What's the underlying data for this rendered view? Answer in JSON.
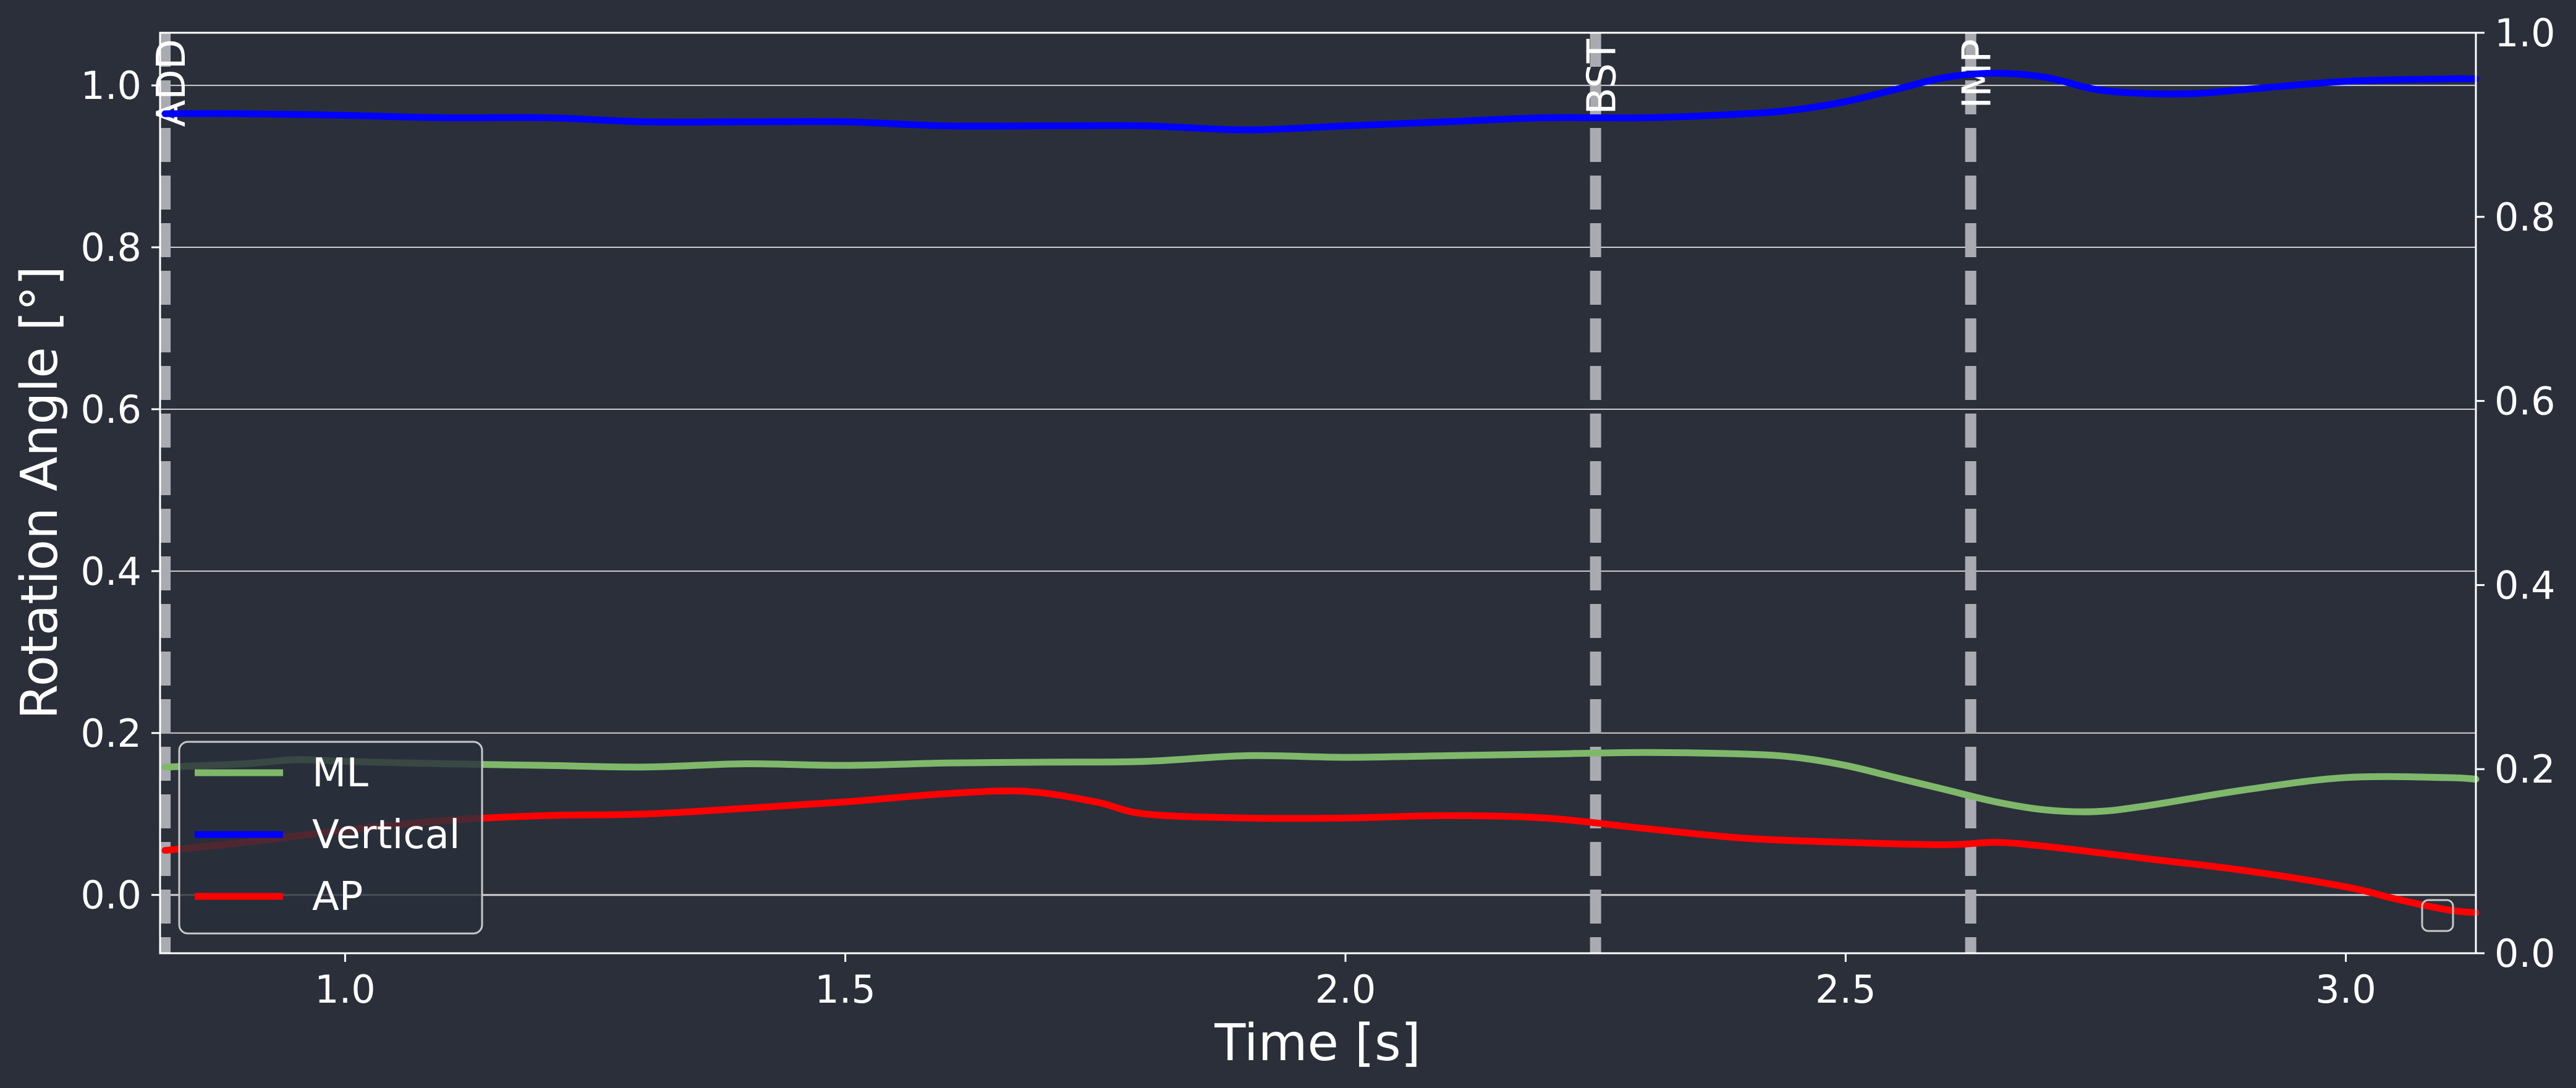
{
  "chart_data": {
    "type": "line",
    "xlabel": "Time [s]",
    "ylabel": "Rotation Angle [°]",
    "xlim": [
      0.815,
      3.13
    ],
    "ylim": [
      -0.072,
      1.065
    ],
    "x_ticks": [
      1.0,
      1.5,
      2.0,
      2.5,
      3.0
    ],
    "x_tick_labels": [
      "1.0",
      "1.5",
      "2.0",
      "2.5",
      "3.0"
    ],
    "y_ticks": [
      0.0,
      0.2,
      0.4,
      0.6,
      0.8,
      1.0
    ],
    "y_tick_labels": [
      "0.0",
      "0.2",
      "0.4",
      "0.6",
      "0.8",
      "1.0"
    ],
    "y2_lim": [
      0.0,
      1.0
    ],
    "y2_ticks": [
      0.0,
      0.2,
      0.4,
      0.6,
      0.8,
      1.0
    ],
    "y2_tick_labels": [
      "0.0",
      "0.2",
      "0.4",
      "0.6",
      "0.8",
      "1.0"
    ],
    "grid": "horizontal",
    "legend_position": "lower-left",
    "series": [
      {
        "name": "ML",
        "color": "#7fb86a",
        "x": [
          0.82,
          0.9,
          0.95,
          1.0,
          1.1,
          1.2,
          1.3,
          1.4,
          1.5,
          1.6,
          1.7,
          1.8,
          1.9,
          2.0,
          2.1,
          2.2,
          2.3,
          2.4,
          2.45,
          2.5,
          2.55,
          2.6,
          2.65,
          2.7,
          2.75,
          2.8,
          2.9,
          3.0,
          3.1,
          3.13
        ],
        "y": [
          0.158,
          0.162,
          0.167,
          0.165,
          0.162,
          0.16,
          0.158,
          0.162,
          0.16,
          0.163,
          0.164,
          0.165,
          0.172,
          0.17,
          0.172,
          0.174,
          0.176,
          0.174,
          0.17,
          0.16,
          0.145,
          0.13,
          0.115,
          0.105,
          0.103,
          0.11,
          0.13,
          0.145,
          0.145,
          0.143
        ]
      },
      {
        "name": "Vertical",
        "color": "#0000ff",
        "x": [
          0.82,
          0.9,
          1.0,
          1.1,
          1.2,
          1.3,
          1.4,
          1.5,
          1.6,
          1.7,
          1.8,
          1.9,
          2.0,
          2.1,
          2.2,
          2.3,
          2.4,
          2.45,
          2.5,
          2.55,
          2.6,
          2.65,
          2.7,
          2.75,
          2.8,
          2.85,
          2.9,
          3.0,
          3.1,
          3.13
        ],
        "y": [
          0.965,
          0.965,
          0.963,
          0.96,
          0.96,
          0.955,
          0.955,
          0.955,
          0.95,
          0.95,
          0.95,
          0.945,
          0.95,
          0.955,
          0.96,
          0.96,
          0.965,
          0.97,
          0.98,
          0.995,
          1.01,
          1.015,
          1.01,
          0.995,
          0.99,
          0.99,
          0.995,
          1.005,
          1.008,
          1.008
        ]
      },
      {
        "name": "AP",
        "color": "#ff0000",
        "x": [
          0.82,
          0.9,
          1.0,
          1.1,
          1.2,
          1.3,
          1.4,
          1.5,
          1.6,
          1.68,
          1.75,
          1.8,
          1.9,
          2.0,
          2.1,
          2.2,
          2.3,
          2.4,
          2.5,
          2.6,
          2.65,
          2.7,
          2.8,
          2.9,
          3.0,
          3.05,
          3.1,
          3.13
        ],
        "y": [
          0.055,
          0.065,
          0.08,
          0.092,
          0.098,
          0.1,
          0.107,
          0.115,
          0.125,
          0.128,
          0.115,
          0.1,
          0.095,
          0.095,
          0.098,
          0.095,
          0.082,
          0.07,
          0.065,
          0.062,
          0.065,
          0.06,
          0.045,
          0.03,
          0.01,
          -0.005,
          -0.018,
          -0.022
        ]
      }
    ],
    "events": [
      {
        "label": "ADD",
        "x": 0.82
      },
      {
        "label": "BST",
        "x": 2.25
      },
      {
        "label": "IMP",
        "x": 2.625
      }
    ]
  }
}
